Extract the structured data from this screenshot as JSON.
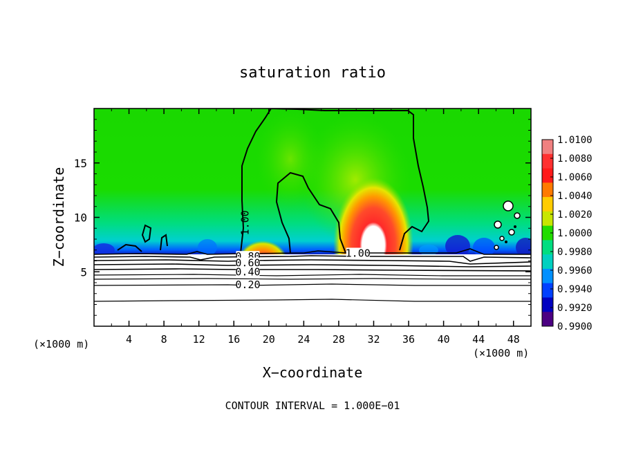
{
  "chart_data": {
    "type": "heatmap",
    "title": "saturation ratio",
    "xlabel": "X−coordinate",
    "ylabel": "Z−coordinate",
    "x_unit_left": "(×1000 m)",
    "x_unit_right": "(×1000 m)",
    "footer": "CONTOUR INTERVAL = 1.000E−01",
    "xlim": [
      0,
      50
    ],
    "ylim": [
      0,
      20
    ],
    "x_ticks": [
      4,
      8,
      12,
      16,
      20,
      24,
      28,
      32,
      36,
      40,
      44,
      48
    ],
    "x_tick_labels": [
      "4",
      "8",
      "12",
      "16",
      "20",
      "24",
      "28",
      "32",
      "36",
      "40",
      "44",
      "48"
    ],
    "y_ticks": [
      5,
      10,
      15
    ],
    "y_tick_labels": [
      "5",
      "10",
      "15"
    ],
    "colorbar": {
      "min": 0.99,
      "max": 1.01,
      "labels": [
        "1.0100",
        "1.0080",
        "1.0060",
        "1.0040",
        "1.0020",
        "1.0000",
        "0.9980",
        "0.9960",
        "0.9940",
        "0.9920",
        "0.9900"
      ],
      "colors": [
        "#f08080",
        "#ff3030",
        "#ff1a1a",
        "#ff7a00",
        "#ffcc00",
        "#c8e600",
        "#22dd00",
        "#00dd80",
        "#00d0c0",
        "#0090ff",
        "#0040ff",
        "#0000c0",
        "#4b0082"
      ]
    },
    "contour_labels": [
      {
        "text": "1.00",
        "x": 17.3,
        "z": 9.5,
        "rotate": -90
      },
      {
        "text": "1.00",
        "x": 30.2,
        "z": 6.7,
        "rotate": 0
      },
      {
        "text": "0.80",
        "x": 17.6,
        "z": 6.4,
        "rotate": 0
      },
      {
        "text": "0.60",
        "x": 17.6,
        "z": 5.8,
        "rotate": 0
      },
      {
        "text": "0.40",
        "x": 17.6,
        "z": 5.0,
        "rotate": 0
      },
      {
        "text": "0.20",
        "x": 17.6,
        "z": 3.8,
        "rotate": 0
      }
    ],
    "contour_levels_below_cloud": [
      0.2,
      0.4,
      0.6,
      0.8,
      1.0
    ],
    "grid": false
  }
}
